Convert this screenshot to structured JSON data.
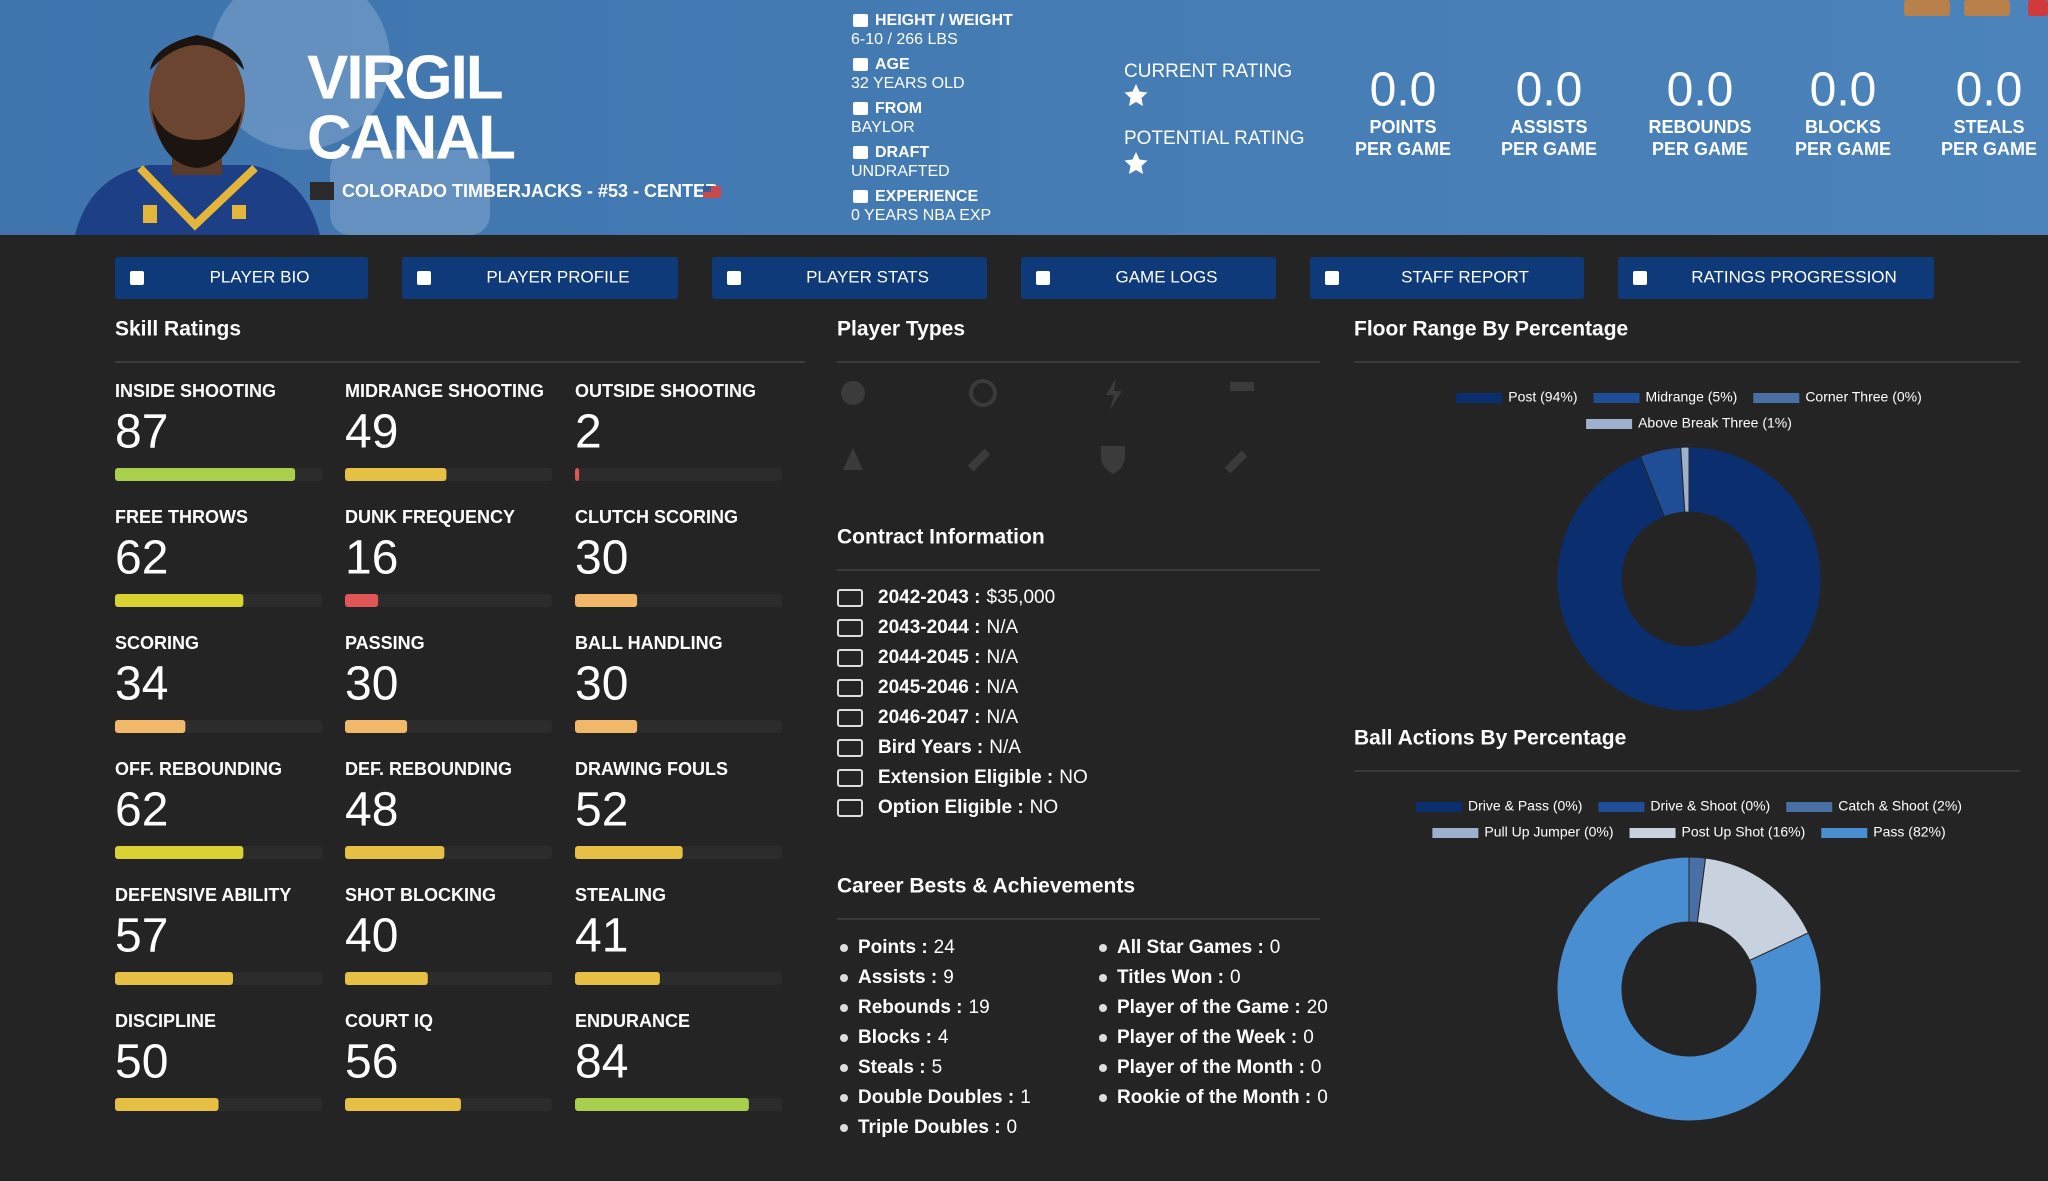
{
  "header": {
    "first_name": "VIRGIL",
    "last_name": "CANAL",
    "team_line": "COLORADO TIMBERJACKS - #53 - CENTER",
    "bio": [
      {
        "label": "HEIGHT / WEIGHT",
        "value": "6-10 / 266 LBS"
      },
      {
        "label": "AGE",
        "value": "32 YEARS OLD"
      },
      {
        "label": "FROM",
        "value": "BAYLOR"
      },
      {
        "label": "DRAFT",
        "value": "UNDRAFTED"
      },
      {
        "label": "EXPERIENCE",
        "value": "0 YEARS NBA EXP"
      }
    ],
    "ratings": [
      "CURRENT RATING",
      "POTENTIAL RATING"
    ],
    "stats": [
      {
        "value": "0.0",
        "label": [
          "POINTS",
          "PER GAME"
        ]
      },
      {
        "value": "0.0",
        "label": [
          "ASSISTS",
          "PER GAME"
        ]
      },
      {
        "value": "0.0",
        "label": [
          "REBOUNDS",
          "PER GAME"
        ]
      },
      {
        "value": "0.0",
        "label": [
          "BLOCKS",
          "PER GAME"
        ]
      },
      {
        "value": "0.0",
        "label": [
          "STEALS",
          "PER GAME"
        ]
      }
    ]
  },
  "tabs": [
    "PLAYER BIO",
    "PLAYER PROFILE",
    "PLAYER STATS",
    "GAME LOGS",
    "STAFF REPORT",
    "RATINGS PROGRESSION"
  ],
  "skill_ratings": {
    "title": "Skill Ratings",
    "items": [
      {
        "name": "INSIDE SHOOTING",
        "value": 87
      },
      {
        "name": "MIDRANGE SHOOTING",
        "value": 49
      },
      {
        "name": "OUTSIDE SHOOTING",
        "value": 2
      },
      {
        "name": "FREE THROWS",
        "value": 62
      },
      {
        "name": "DUNK FREQUENCY",
        "value": 16
      },
      {
        "name": "CLUTCH SCORING",
        "value": 30
      },
      {
        "name": "SCORING",
        "value": 34
      },
      {
        "name": "PASSING",
        "value": 30
      },
      {
        "name": "BALL HANDLING",
        "value": 30
      },
      {
        "name": "OFF. REBOUNDING",
        "value": 62
      },
      {
        "name": "DEF. REBOUNDING",
        "value": 48
      },
      {
        "name": "DRAWING FOULS",
        "value": 52
      },
      {
        "name": "DEFENSIVE ABILITY",
        "value": 57
      },
      {
        "name": "SHOT BLOCKING",
        "value": 40
      },
      {
        "name": "STEALING",
        "value": 41
      },
      {
        "name": "DISCIPLINE",
        "value": 50
      },
      {
        "name": "COURT IQ",
        "value": 56
      },
      {
        "name": "ENDURANCE",
        "value": 84
      }
    ]
  },
  "player_types": {
    "title": "Player Types"
  },
  "contract": {
    "title": "Contract Information",
    "items": [
      {
        "label": "2042-2043 :",
        "value": "$35,000"
      },
      {
        "label": "2043-2044 :",
        "value": "N/A"
      },
      {
        "label": "2044-2045 :",
        "value": "N/A"
      },
      {
        "label": "2045-2046 :",
        "value": "N/A"
      },
      {
        "label": "2046-2047 :",
        "value": "N/A"
      },
      {
        "label": "Bird Years :",
        "value": "N/A"
      },
      {
        "label": "Extension Eligible :",
        "value": "NO"
      },
      {
        "label": "Option Eligible :",
        "value": "NO"
      }
    ]
  },
  "career": {
    "title": "Career Bests & Achievements",
    "left": [
      {
        "label": "Points :",
        "value": 24
      },
      {
        "label": "Assists :",
        "value": 9
      },
      {
        "label": "Rebounds :",
        "value": 19
      },
      {
        "label": "Blocks :",
        "value": 4
      },
      {
        "label": "Steals :",
        "value": 5
      },
      {
        "label": "Double Doubles :",
        "value": 1
      },
      {
        "label": "Triple Doubles :",
        "value": 0
      }
    ],
    "right": [
      {
        "label": "All Star Games :",
        "value": 0
      },
      {
        "label": "Titles Won :",
        "value": 0
      },
      {
        "label": "Player of the Game :",
        "value": 20
      },
      {
        "label": "Player of the Week :",
        "value": 0
      },
      {
        "label": "Player of the Month :",
        "value": 0
      },
      {
        "label": "Rookie of the Month :",
        "value": 0
      }
    ]
  },
  "floor_range": {
    "type": "donut",
    "title": "Floor Range By Percentage",
    "series": [
      {
        "name": "Post (94%)",
        "value": 94,
        "color": "#0b2f6e"
      },
      {
        "name": "Midrange (5%)",
        "value": 5,
        "color": "#1f4e96"
      },
      {
        "name": "Corner Three (0%)",
        "value": 0,
        "color": "#4a6fa5"
      },
      {
        "name": "Above Break Three (1%)",
        "value": 1,
        "color": "#9db0cc"
      }
    ]
  },
  "ball_actions": {
    "type": "donut",
    "title": "Ball Actions By Percentage",
    "series": [
      {
        "name": "Drive & Pass (0%)",
        "value": 0,
        "color": "#0b2f6e"
      },
      {
        "name": "Drive & Shoot (0%)",
        "value": 0,
        "color": "#1f4e96"
      },
      {
        "name": "Catch & Shoot (2%)",
        "value": 2,
        "color": "#4a6fa5"
      },
      {
        "name": "Pull Up Jumper (0%)",
        "value": 0,
        "color": "#9db0cc"
      },
      {
        "name": "Post Up Shot (16%)",
        "value": 16,
        "color": "#c8d2df"
      },
      {
        "name": "Pass (82%)",
        "value": 82,
        "color": "#4a8ed2"
      }
    ]
  }
}
